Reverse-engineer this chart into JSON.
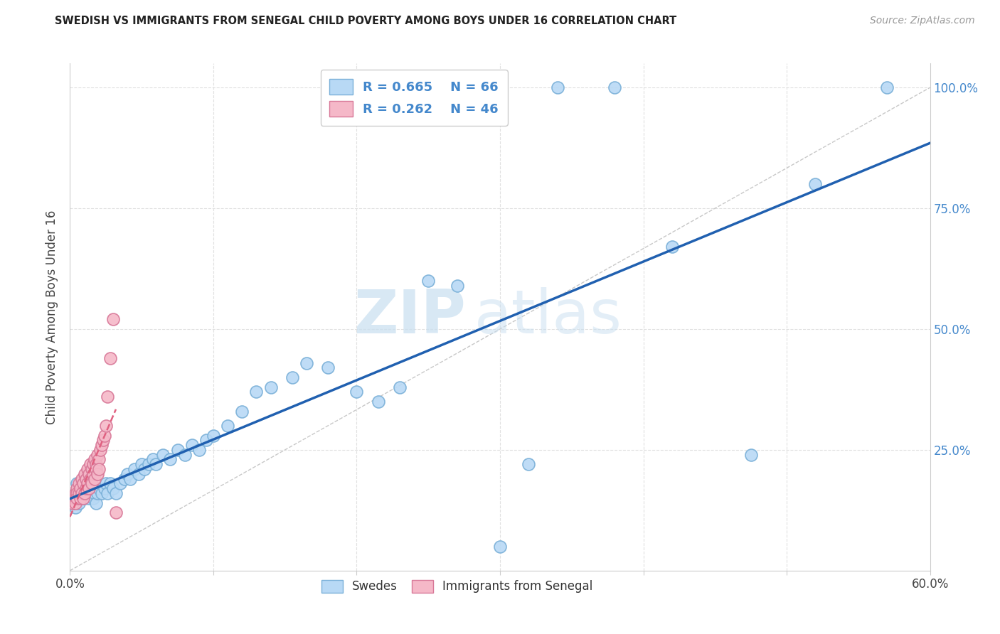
{
  "title": "SWEDISH VS IMMIGRANTS FROM SENEGAL CHILD POVERTY AMONG BOYS UNDER 16 CORRELATION CHART",
  "source": "Source: ZipAtlas.com",
  "ylabel": "Child Poverty Among Boys Under 16",
  "xlim": [
    0,
    0.6
  ],
  "ylim": [
    0,
    1.05
  ],
  "legend_R_blue": "R = 0.665",
  "legend_N_blue": "N = 66",
  "legend_R_pink": "R = 0.262",
  "legend_N_pink": "N = 46",
  "watermark_zip": "ZIP",
  "watermark_atlas": "atlas",
  "background_color": "#ffffff",
  "grid_color": "#e0e0e0",
  "blue_face": "#b8d9f5",
  "blue_edge": "#7ab0d8",
  "pink_face": "#f5b8c8",
  "pink_edge": "#d87898",
  "blue_line_color": "#2060b0",
  "pink_line_color": "#e06080",
  "ref_line_color": "#c8c8c8",
  "right_tick_color": "#4488cc",
  "swedes_x": [
    0.002,
    0.003,
    0.004,
    0.005,
    0.005,
    0.006,
    0.007,
    0.008,
    0.009,
    0.01,
    0.011,
    0.012,
    0.013,
    0.014,
    0.015,
    0.016,
    0.017,
    0.018,
    0.019,
    0.02,
    0.022,
    0.024,
    0.025,
    0.026,
    0.028,
    0.03,
    0.032,
    0.035,
    0.038,
    0.04,
    0.042,
    0.045,
    0.048,
    0.05,
    0.052,
    0.055,
    0.058,
    0.06,
    0.065,
    0.07,
    0.075,
    0.08,
    0.085,
    0.09,
    0.095,
    0.1,
    0.11,
    0.12,
    0.13,
    0.14,
    0.155,
    0.165,
    0.18,
    0.2,
    0.215,
    0.23,
    0.25,
    0.27,
    0.3,
    0.32,
    0.34,
    0.38,
    0.42,
    0.475,
    0.52,
    0.57
  ],
  "swedes_y": [
    0.14,
    0.15,
    0.13,
    0.16,
    0.18,
    0.14,
    0.16,
    0.15,
    0.17,
    0.15,
    0.16,
    0.18,
    0.15,
    0.16,
    0.17,
    0.15,
    0.16,
    0.14,
    0.16,
    0.17,
    0.16,
    0.17,
    0.18,
    0.16,
    0.18,
    0.17,
    0.16,
    0.18,
    0.19,
    0.2,
    0.19,
    0.21,
    0.2,
    0.22,
    0.21,
    0.22,
    0.23,
    0.22,
    0.24,
    0.23,
    0.25,
    0.24,
    0.26,
    0.25,
    0.27,
    0.28,
    0.3,
    0.33,
    0.37,
    0.38,
    0.4,
    0.43,
    0.42,
    0.37,
    0.35,
    0.38,
    0.6,
    0.59,
    0.05,
    0.22,
    1.0,
    1.0,
    0.67,
    0.24,
    0.8,
    1.0
  ],
  "senegal_x": [
    0.002,
    0.003,
    0.004,
    0.004,
    0.005,
    0.005,
    0.005,
    0.006,
    0.006,
    0.007,
    0.007,
    0.008,
    0.008,
    0.009,
    0.009,
    0.01,
    0.01,
    0.011,
    0.011,
    0.012,
    0.012,
    0.013,
    0.013,
    0.014,
    0.014,
    0.015,
    0.015,
    0.016,
    0.016,
    0.017,
    0.017,
    0.018,
    0.018,
    0.019,
    0.019,
    0.02,
    0.02,
    0.021,
    0.022,
    0.023,
    0.024,
    0.025,
    0.026,
    0.028,
    0.03,
    0.032
  ],
  "senegal_y": [
    0.14,
    0.15,
    0.16,
    0.14,
    0.17,
    0.16,
    0.15,
    0.18,
    0.16,
    0.17,
    0.15,
    0.19,
    0.16,
    0.18,
    0.15,
    0.2,
    0.16,
    0.19,
    0.17,
    0.21,
    0.18,
    0.2,
    0.17,
    0.22,
    0.19,
    0.21,
    0.18,
    0.22,
    0.2,
    0.23,
    0.19,
    0.22,
    0.21,
    0.24,
    0.2,
    0.23,
    0.21,
    0.25,
    0.26,
    0.27,
    0.28,
    0.3,
    0.36,
    0.44,
    0.52,
    0.12
  ]
}
